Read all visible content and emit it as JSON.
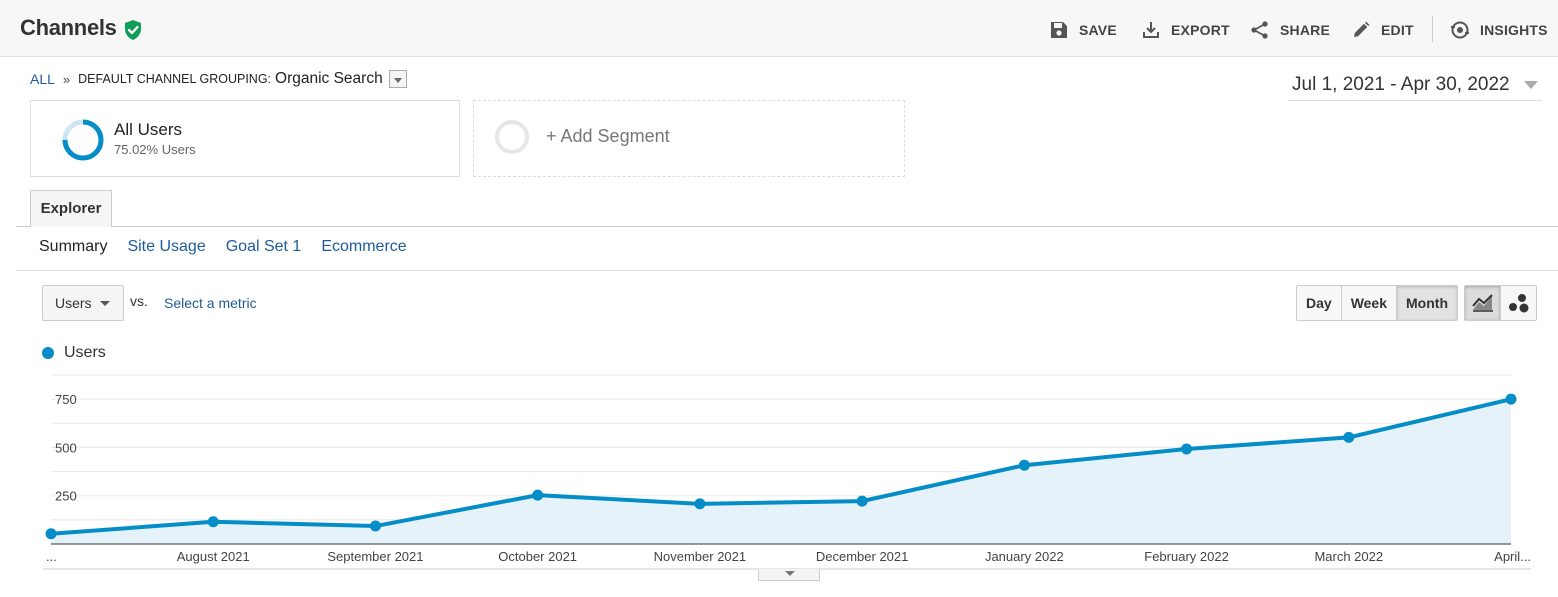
{
  "header": {
    "title": "Channels",
    "actions": [
      {
        "label": "SAVE",
        "icon": "save-icon"
      },
      {
        "label": "EXPORT",
        "icon": "export-icon"
      },
      {
        "label": "SHARE",
        "icon": "share-icon"
      },
      {
        "label": "EDIT",
        "icon": "edit-icon"
      },
      {
        "label": "INSIGHTS",
        "icon": "insights-icon"
      }
    ]
  },
  "breadcrumb": {
    "all": "ALL",
    "separator": "»",
    "dimension": "DEFAULT CHANNEL GROUPING:",
    "value": "Organic Search"
  },
  "date_range": "Jul 1, 2021 - Apr 30, 2022",
  "segments": [
    {
      "name": "All Users",
      "subtitle": "75.02% Users",
      "percent": 75.02
    },
    {
      "name": "+ Add Segment"
    }
  ],
  "tabs": {
    "main": "Explorer",
    "sub": [
      "Summary",
      "Site Usage",
      "Goal Set 1",
      "Ecommerce"
    ],
    "active_sub": "Summary"
  },
  "metric": {
    "selected": "Users",
    "vs": "vs.",
    "select_placeholder": "Select a metric"
  },
  "granularity": {
    "options": [
      "Day",
      "Week",
      "Month"
    ],
    "active": "Month"
  },
  "chart_types": [
    {
      "icon": "line-chart-icon",
      "active": true
    },
    {
      "icon": "motion-chart-icon",
      "active": false
    }
  ],
  "colors": {
    "series": "#058dc7",
    "fill": "#e6f2f9",
    "link": "#1e5b9a"
  },
  "chart_data": {
    "type": "line",
    "series": [
      {
        "name": "Users",
        "values": [
          53,
          115,
          93,
          253,
          208,
          222,
          408,
          492,
          552,
          750
        ]
      }
    ],
    "x": [
      "...",
      "August 2021",
      "September 2021",
      "October 2021",
      "November 2021",
      "December 2021",
      "January 2022",
      "February 2022",
      "March 2022",
      "April..."
    ],
    "yticks": [
      250,
      500,
      750
    ],
    "ylim": [
      0,
      875
    ],
    "grid": true,
    "legend": "top-left",
    "fill_area": true
  }
}
